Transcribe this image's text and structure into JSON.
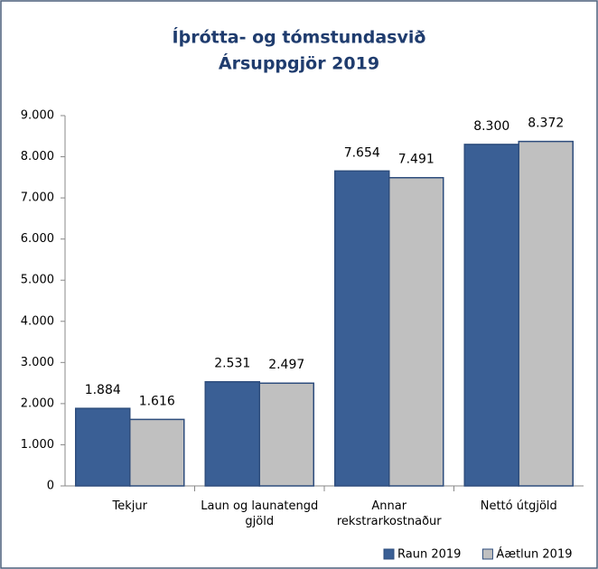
{
  "chart_data": {
    "type": "bar",
    "title": "Íþrótta- og tómstundasvið",
    "subtitle": "Ársuppgjör 2019",
    "categories": [
      "Tekjur",
      "Laun og launatengd gjöld",
      "Annar rekstrarkostnaður",
      "Nettó útgjöld"
    ],
    "series": [
      {
        "name": "Raun 2019",
        "color": "#3a5f95",
        "values": [
          1884,
          2531,
          7654,
          8300
        ],
        "value_labels": [
          "1.884",
          "2.531",
          "7.654",
          "8.300"
        ]
      },
      {
        "name": "Áætlun 2019",
        "color": "#c0c0c0",
        "values": [
          1616,
          2497,
          7491,
          8372
        ],
        "value_labels": [
          "1.616",
          "2.497",
          "7.491",
          "8.372"
        ]
      }
    ],
    "ylim": [
      0,
      9000
    ],
    "yticks": [
      0,
      {
        "value": 1000,
        "label": "1.000"
      },
      {
        "value": 2000,
        "label": "2.000"
      },
      {
        "value": 3000,
        "label": "3.000"
      },
      {
        "value": 4000,
        "label": "4.000"
      },
      {
        "value": 5000,
        "label": "5.000"
      },
      {
        "value": 6000,
        "label": "6.000"
      },
      {
        "value": 7000,
        "label": "7.000"
      },
      {
        "value": 8000,
        "label": "8.000"
      },
      {
        "value": 9000,
        "label": "9.000"
      }
    ],
    "legend": "bottom-right"
  }
}
